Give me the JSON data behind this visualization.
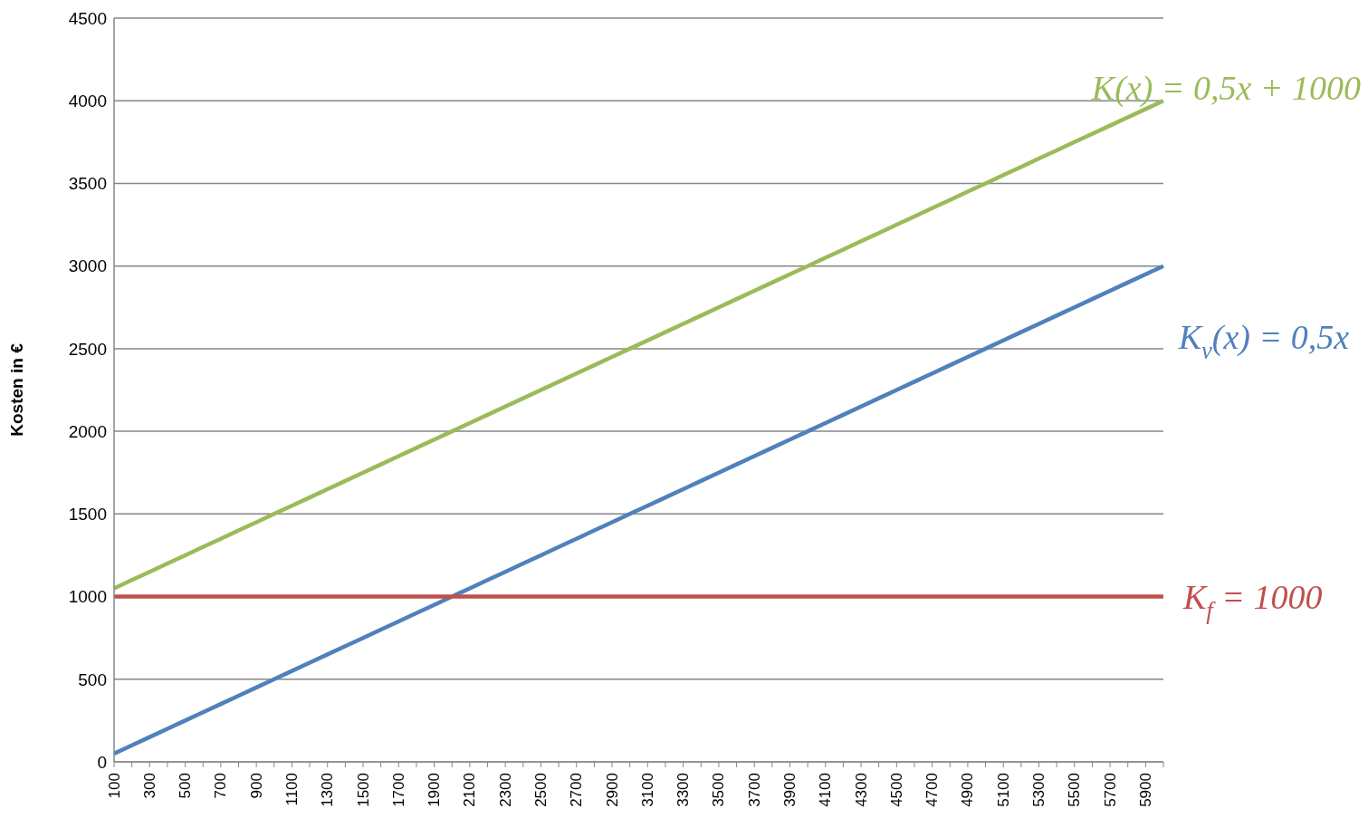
{
  "chart_data": {
    "type": "line",
    "ylabel": "Kosten in €",
    "categories": [
      "100",
      null,
      "300",
      null,
      "500",
      null,
      "700",
      null,
      "900",
      null,
      "1100",
      null,
      "1300",
      null,
      "1500",
      null,
      "1700",
      null,
      "1900",
      null,
      "2100",
      null,
      "2300",
      null,
      "2500",
      null,
      "2700",
      null,
      "2900",
      null,
      "3100",
      null,
      "3300",
      null,
      "3500",
      null,
      "3700",
      null,
      "3900",
      null,
      "4100",
      null,
      "4300",
      null,
      "4500",
      null,
      "4700",
      null,
      "4900",
      null,
      "5100",
      null,
      "5300",
      null,
      "5500",
      null,
      "5700",
      null,
      "5900",
      null
    ],
    "series": [
      {
        "name": "K(x) = 0,5x + 1000",
        "color": "#9bbb59",
        "values": [
          1050,
          1100,
          1150,
          1200,
          1250,
          1300,
          1350,
          1400,
          1450,
          1500,
          1550,
          1600,
          1650,
          1700,
          1750,
          1800,
          1850,
          1900,
          1950,
          2000,
          2050,
          2100,
          2150,
          2200,
          2250,
          2300,
          2350,
          2400,
          2450,
          2500,
          2550,
          2600,
          2650,
          2700,
          2750,
          2800,
          2850,
          2900,
          2950,
          3000,
          3050,
          3100,
          3150,
          3200,
          3250,
          3300,
          3350,
          3400,
          3450,
          3500,
          3550,
          3600,
          3650,
          3700,
          3750,
          3800,
          3850,
          3900,
          3950,
          4000
        ]
      },
      {
        "name": "K$_{v}$(x) = 0,5x",
        "color": "#4f81bd",
        "values": [
          50,
          100,
          150,
          200,
          250,
          300,
          350,
          400,
          450,
          500,
          550,
          600,
          650,
          700,
          750,
          800,
          850,
          900,
          950,
          1000,
          1050,
          1100,
          1150,
          1200,
          1250,
          1300,
          1350,
          1400,
          1450,
          1500,
          1550,
          1600,
          1650,
          1700,
          1750,
          1800,
          1850,
          1900,
          1950,
          2000,
          2050,
          2100,
          2150,
          2200,
          2250,
          2300,
          2350,
          2400,
          2450,
          2500,
          2550,
          2600,
          2650,
          2700,
          2750,
          2800,
          2850,
          2900,
          2950,
          3000
        ]
      },
      {
        "name": "K$_{f}$ = 1000",
        "color": "#c0504d",
        "values": [
          1000,
          1000,
          1000,
          1000,
          1000,
          1000,
          1000,
          1000,
          1000,
          1000,
          1000,
          1000,
          1000,
          1000,
          1000,
          1000,
          1000,
          1000,
          1000,
          1000,
          1000,
          1000,
          1000,
          1000,
          1000,
          1000,
          1000,
          1000,
          1000,
          1000,
          1000,
          1000,
          1000,
          1000,
          1000,
          1000,
          1000,
          1000,
          1000,
          1000,
          1000,
          1000,
          1000,
          1000,
          1000,
          1000,
          1000,
          1000,
          1000,
          1000,
          1000,
          1000,
          1000,
          1000,
          1000,
          1000,
          1000,
          1000,
          1000,
          1000
        ]
      }
    ],
    "ylim": [
      0,
      4500
    ],
    "yticks": [
      0,
      500,
      1000,
      1500,
      2000,
      2500,
      3000,
      3500,
      4000,
      4500
    ],
    "grid": "y"
  }
}
